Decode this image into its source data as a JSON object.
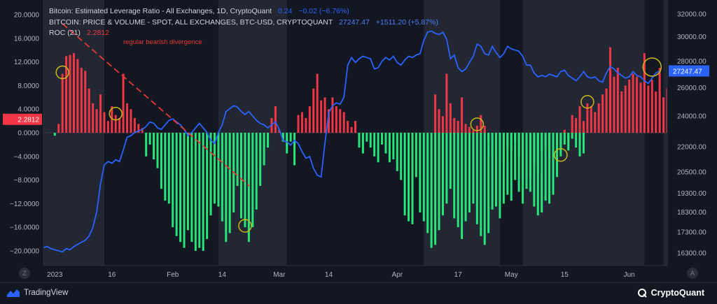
{
  "legend": {
    "line1_label": "Bitcoin: Estimated Leverage Ratio - All Exchanges, 1D, CryptoQuant",
    "line1_value": "0.24",
    "line1_change": "−0.02 (−6.76%)",
    "line2_label": "BITCOIN: PRICE & VOLUME - SPOT, ALL EXCHANGES, BTC-USD, CRYPTOQUANT",
    "line2_value": "27247.47",
    "line2_change": "+1511.20 (+5.87%)",
    "line3_label": "ROC (21)",
    "line3_value": "2.2812"
  },
  "annotation": "regular bearish divergence",
  "left_axis_badge": "2.2812",
  "right_axis_badge": "27247.47",
  "footer": {
    "tradingview": "TradingView",
    "cryptoquant": "CryptoQuant",
    "left_button": "Z",
    "right_button": "A"
  },
  "colors": {
    "background": "#131722",
    "shade": "#2a2e39",
    "bar_positive": "#f23645",
    "bar_negative": "#26e67a",
    "price_line": "#2962ff",
    "highlight_circle": "#c9b918",
    "annotation": "#e53935"
  },
  "chart_data": {
    "type": "bar",
    "left_axis": {
      "ticks": [
        "20.0000",
        "16.0000",
        "12.0000",
        "8.0000",
        "4.0000",
        "0.0000",
        "−4.0000",
        "−8.0000",
        "−12.0000",
        "−16.0000",
        "−20.0000"
      ],
      "ylim": [
        -22.5,
        22.5
      ]
    },
    "right_axis": {
      "ticks": [
        "32000.00",
        "30000.00",
        "28000.00",
        "26000.00",
        "24000.00",
        "22000.00",
        "20500.00",
        "19300.00",
        "18300.00",
        "17300.00",
        "16300.00"
      ],
      "scale": "log"
    },
    "x_ticks": [
      "2023",
      "16",
      "Feb",
      "14",
      "Mar",
      "14",
      "Apr",
      "17",
      "May",
      "15",
      "Jun"
    ],
    "x_range_days": [
      -3,
      161
    ],
    "shaded_day_ranges": [
      [
        -3,
        13
      ],
      [
        43,
        61
      ],
      [
        97,
        117
      ],
      [
        123,
        155
      ],
      [
        160,
        161
      ]
    ],
    "roc_series": {
      "name": "ROC (21)",
      "start_day": 0,
      "values": [
        -0.5,
        1.5,
        10.0,
        13.0,
        13.2,
        13.5,
        12.5,
        11.0,
        10.5,
        7.5,
        5.0,
        4.0,
        6.5,
        3.5,
        2.0,
        4.5,
        3.0,
        2.5,
        10.0,
        5.0,
        4.0,
        2.5,
        1.5,
        0.8,
        -4.0,
        -2.0,
        -4.5,
        -6.0,
        -9.5,
        -11.5,
        -12.0,
        -16.0,
        -17.5,
        -18.5,
        -19.5,
        -16.5,
        -18.5,
        -20.0,
        -19.5,
        -20.0,
        -18.0,
        -14.0,
        -12.0,
        -12.5,
        -15.0,
        -18.5,
        -17.0,
        -13.5,
        -9.0,
        -14.5,
        -16.0,
        -18.5,
        -16.0,
        -13.0,
        -9.0,
        -5.5,
        -2.5,
        2.5,
        4.5,
        0.5,
        -1.5,
        -3.5,
        -1.5,
        -5.5,
        3.0,
        3.5,
        2.5,
        4.5,
        7.5,
        10.0,
        5.5,
        6.0,
        4.0,
        6.0,
        4.5,
        4.0,
        3.5,
        2.0,
        1.0,
        2.0,
        -2.5,
        -3.5,
        -1.5,
        -2.5,
        -4.0,
        -5.0,
        -2.0,
        -3.5,
        -5.0,
        -4.5,
        -6.5,
        -8.0,
        -14.0,
        -15.0,
        -15.5,
        -7.5,
        -13.5,
        -15.0,
        -17.0,
        -19.5,
        -19.0,
        -16.5,
        -14.0,
        -12.0,
        -9.5,
        -14.5,
        -16.0,
        -18.0,
        -15.0,
        -13.5,
        -12.0,
        -15.5,
        -17.5,
        -19.0,
        -17.0,
        -13.0,
        -12.5,
        -14.5,
        -12.0,
        -10.5,
        -11.5,
        -8.0,
        -10.0,
        -12.0,
        -9.5,
        -7.5,
        -5.5,
        -7.0,
        -3.0,
        -2.5,
        -3.5,
        -4.5,
        -3.0,
        -2.0,
        0.5,
        -3.0,
        -1.0,
        -2.5,
        -4.0,
        -3.5
      ]
    },
    "roc_series_2": {
      "start_day": 100,
      "values": [
        6.5,
        4.0,
        2.8,
        10.0,
        5.0,
        2.5,
        2.0,
        6.0,
        1.5,
        1.0,
        0.5,
        1.2,
        3.0,
        1.2,
        -1.5,
        -4.0,
        -6.5,
        -4.5,
        -5.0,
        -2.5,
        -3.0,
        -1.5,
        -4.0,
        -7.0,
        -8.5,
        -10.0,
        -12.5,
        -14.0,
        -13.5,
        -11.5,
        -12.0,
        -10.5,
        -7.5,
        -4.0,
        -2.0,
        -1.5,
        3.0,
        2.5,
        4.5,
        2.0,
        5.0,
        4.5,
        3.5,
        5.0,
        6.5,
        7.5,
        14.5,
        9.5,
        11.0,
        7.0,
        8.0,
        9.0,
        10.0,
        9.5,
        8.5,
        13.5,
        8.0,
        9.0,
        7.0,
        11.0,
        6.0,
        7.5,
        4.5,
        8.5,
        6.0,
        5.5,
        4.0,
        7.5,
        10.5,
        2.3
      ]
    },
    "price_series": {
      "name": "BITCOIN: PRICE & VOLUME - SPOT",
      "start_day": -3,
      "values": [
        16550,
        16600,
        16500,
        16450,
        16400,
        16350,
        16500,
        16450,
        16600,
        16700,
        16800,
        16900,
        17100,
        17500,
        18300,
        19800,
        20900,
        21100,
        21000,
        21200,
        21100,
        21800,
        22600,
        22700,
        22900,
        23000,
        23100,
        23300,
        23600,
        23500,
        23200,
        23100,
        23400,
        23700,
        23800,
        23600,
        23400,
        23100,
        22700,
        22900,
        23200,
        23500,
        23200,
        22900,
        22400,
        22200,
        22900,
        23400,
        24300,
        24500,
        24700,
        24600,
        24300,
        24100,
        24300,
        24000,
        23700,
        23500,
        23400,
        23200,
        23400,
        23600,
        23100,
        22400,
        22300,
        22100,
        22400,
        22200,
        21700,
        21300,
        21400,
        20700,
        20300,
        20200,
        22200,
        24200,
        24700,
        24900,
        24800,
        25300,
        27700,
        28300,
        27900,
        28200,
        28400,
        28300,
        28200,
        27400,
        27500,
        28000,
        28300,
        28100,
        28400,
        27900,
        27700,
        28100,
        28400,
        28300,
        28500,
        28600,
        29700,
        30400,
        30500,
        30300,
        30200,
        30400,
        29800,
        28200,
        28500,
        27500,
        27200,
        27400,
        27900,
        28400,
        29400,
        29200,
        28600,
        28500,
        29200,
        28700,
        28300,
        28600,
        29200,
        29000,
        28900,
        28800,
        28400,
        27700,
        27700,
        27100,
        26800,
        26900,
        26800,
        27000,
        26900,
        26800,
        27200,
        27300,
        26900,
        26700,
        26500,
        26800,
        27200,
        26800,
        26700,
        26800,
        26500,
        26400,
        27100,
        27600,
        27400,
        27100,
        26900,
        26700,
        26800,
        27200,
        26900,
        26800,
        26500,
        26300,
        26700,
        27100,
        27247.47
      ]
    },
    "highlight_circles_days": [
      2,
      16,
      50,
      111,
      133,
      140,
      157
    ],
    "divergence_line_days": [
      2,
      50
    ]
  }
}
